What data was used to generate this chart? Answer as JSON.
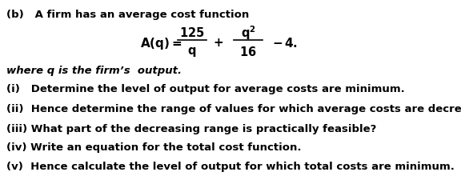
{
  "background_color": "#ffffff",
  "title_line": "(b)   A firm has an average cost function",
  "where_line": "where q is the firm’s  output.",
  "items": [
    [
      "(i)   ",
      "Determine the level of output for average costs are minimum."
    ],
    [
      "(ii)  ",
      "Hence determine the range of values for which average costs are decreasing."
    ],
    [
      "(iii) ",
      "What part of the decreasing range is practically feasible?"
    ],
    [
      "(iv) ",
      "Write an equation for the total cost function."
    ],
    [
      "(v)  ",
      "Hence calculate the level of output for which total costs are minimum."
    ]
  ],
  "font_size": 9.5,
  "text_color": "#000000",
  "formula_color": "#000000"
}
